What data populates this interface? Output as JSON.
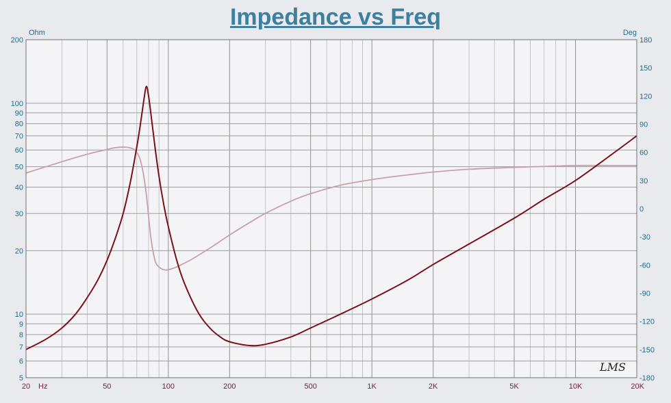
{
  "chart_data": {
    "type": "line",
    "title": "Impedance vs Freq",
    "x_scale": "log",
    "xlim": [
      20,
      20000
    ],
    "x_ticks": [
      {
        "v": 20,
        "label": "20"
      },
      {
        "v": 50,
        "label": "50"
      },
      {
        "v": 100,
        "label": "100"
      },
      {
        "v": 200,
        "label": "200"
      },
      {
        "v": 500,
        "label": "500"
      },
      {
        "v": 1000,
        "label": "1K"
      },
      {
        "v": 2000,
        "label": "2K"
      },
      {
        "v": 5000,
        "label": "5K"
      },
      {
        "v": 10000,
        "label": "10K"
      },
      {
        "v": 20000,
        "label": "20K"
      }
    ],
    "x_unit": "Hz",
    "y_left": {
      "unit": "Ohm",
      "scale": "log",
      "ylim": [
        5,
        200
      ],
      "ticks": [
        5,
        6,
        7,
        8,
        9,
        10,
        20,
        30,
        40,
        50,
        60,
        70,
        80,
        90,
        100,
        200
      ]
    },
    "y_right": {
      "unit": "Deg",
      "scale": "linear",
      "ylim": [
        -180,
        180
      ],
      "ticks": [
        -180,
        -150,
        -120,
        -90,
        -60,
        -30,
        0,
        30,
        60,
        90,
        120,
        150,
        180
      ]
    },
    "grid": true,
    "series": [
      {
        "axis": "left",
        "color": "#7a0f14",
        "points": [
          [
            20,
            6.8
          ],
          [
            25,
            7.6
          ],
          [
            30,
            8.6
          ],
          [
            35,
            10
          ],
          [
            40,
            12
          ],
          [
            45,
            14.5
          ],
          [
            50,
            18
          ],
          [
            55,
            23
          ],
          [
            60,
            30
          ],
          [
            65,
            42
          ],
          [
            70,
            62
          ],
          [
            73,
            80
          ],
          [
            76,
            105
          ],
          [
            78,
            120
          ],
          [
            80,
            108
          ],
          [
            83,
            82
          ],
          [
            86,
            62
          ],
          [
            90,
            45
          ],
          [
            95,
            33
          ],
          [
            100,
            26
          ],
          [
            110,
            18
          ],
          [
            120,
            14
          ],
          [
            140,
            10.2
          ],
          [
            160,
            8.6
          ],
          [
            180,
            7.8
          ],
          [
            200,
            7.4
          ],
          [
            250,
            7.1
          ],
          [
            300,
            7.2
          ],
          [
            400,
            7.8
          ],
          [
            500,
            8.6
          ],
          [
            700,
            10
          ],
          [
            1000,
            11.8
          ],
          [
            1500,
            14.5
          ],
          [
            2000,
            17.2
          ],
          [
            3000,
            21.5
          ],
          [
            5000,
            28.5
          ],
          [
            7000,
            35
          ],
          [
            10000,
            43
          ],
          [
            15000,
            57
          ],
          [
            20000,
            70
          ]
        ]
      },
      {
        "axis": "right",
        "color": "#c9a0a8",
        "points": [
          [
            20,
            38
          ],
          [
            30,
            50
          ],
          [
            40,
            58
          ],
          [
            50,
            63
          ],
          [
            55,
            65
          ],
          [
            62,
            65.5
          ],
          [
            68,
            63
          ],
          [
            72,
            55
          ],
          [
            75,
            40
          ],
          [
            78,
            15
          ],
          [
            82,
            -30
          ],
          [
            86,
            -55
          ],
          [
            90,
            -62
          ],
          [
            95,
            -65
          ],
          [
            100,
            -65
          ],
          [
            110,
            -62
          ],
          [
            130,
            -54
          ],
          [
            160,
            -42
          ],
          [
            200,
            -28
          ],
          [
            250,
            -15
          ],
          [
            300,
            -5
          ],
          [
            400,
            8
          ],
          [
            500,
            16
          ],
          [
            700,
            25
          ],
          [
            1000,
            31
          ],
          [
            1500,
            36
          ],
          [
            2000,
            39
          ],
          [
            3000,
            42
          ],
          [
            5000,
            44
          ],
          [
            7000,
            45
          ],
          [
            10000,
            46
          ],
          [
            15000,
            46
          ],
          [
            20000,
            46
          ]
        ]
      }
    ],
    "watermark": "LMS"
  }
}
